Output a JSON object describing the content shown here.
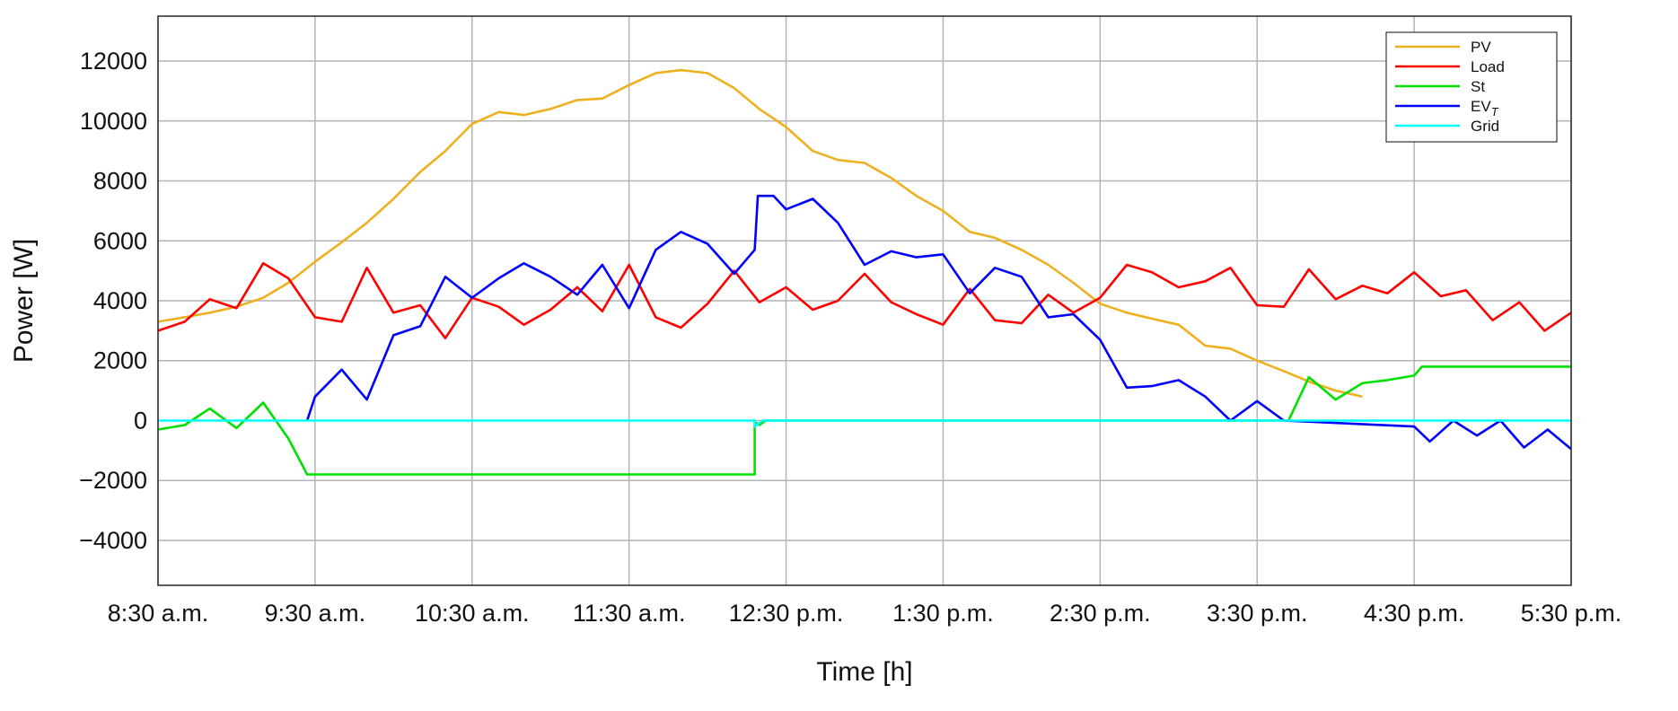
{
  "chart_data": {
    "type": "line",
    "title": "",
    "xlabel": "Time [h]",
    "ylabel": "Power [W]",
    "grid": true,
    "legend_position": "top-right",
    "xlim": [
      8.5,
      17.5
    ],
    "ylim": [
      -5500,
      13500
    ],
    "x_ticks": [
      {
        "value": 8.5,
        "label": "8:30 a.m."
      },
      {
        "value": 9.5,
        "label": "9:30 a.m."
      },
      {
        "value": 10.5,
        "label": "10:30 a.m."
      },
      {
        "value": 11.5,
        "label": "11:30 a.m."
      },
      {
        "value": 12.5,
        "label": "12:30 p.m."
      },
      {
        "value": 13.5,
        "label": "1:30 p.m."
      },
      {
        "value": 14.5,
        "label": "2:30 p.m."
      },
      {
        "value": 15.5,
        "label": "3:30 p.m."
      },
      {
        "value": 16.5,
        "label": "4:30 p.m."
      },
      {
        "value": 17.5,
        "label": "5:30 p.m."
      }
    ],
    "y_ticks": [
      {
        "value": 12000,
        "label": "12000"
      },
      {
        "value": 10000,
        "label": "10000"
      },
      {
        "value": 8000,
        "label": "8000"
      },
      {
        "value": 6000,
        "label": "6000"
      },
      {
        "value": 4000,
        "label": "4000"
      },
      {
        "value": 2000,
        "label": "2000"
      },
      {
        "value": 0,
        "label": "0"
      },
      {
        "value": -2000,
        "label": "−2000"
      },
      {
        "value": -4000,
        "label": "−4000"
      }
    ],
    "series": [
      {
        "name": "PV",
        "color": "#EDB120",
        "points": [
          [
            8.5,
            3300
          ],
          [
            8.67,
            3450
          ],
          [
            8.83,
            3600
          ],
          [
            9.0,
            3800
          ],
          [
            9.17,
            4100
          ],
          [
            9.33,
            4600
          ],
          [
            9.5,
            5300
          ],
          [
            9.67,
            5950
          ],
          [
            9.83,
            6600
          ],
          [
            10.0,
            7400
          ],
          [
            10.17,
            8300
          ],
          [
            10.33,
            9000
          ],
          [
            10.5,
            9900
          ],
          [
            10.67,
            10300
          ],
          [
            10.83,
            10200
          ],
          [
            11.0,
            10400
          ],
          [
            11.17,
            10700
          ],
          [
            11.33,
            10750
          ],
          [
            11.5,
            11200
          ],
          [
            11.67,
            11600
          ],
          [
            11.83,
            11700
          ],
          [
            12.0,
            11600
          ],
          [
            12.17,
            11100
          ],
          [
            12.33,
            10400
          ],
          [
            12.5,
            9800
          ],
          [
            12.67,
            9000
          ],
          [
            12.83,
            8700
          ],
          [
            13.0,
            8600
          ],
          [
            13.17,
            8100
          ],
          [
            13.33,
            7500
          ],
          [
            13.5,
            7000
          ],
          [
            13.67,
            6300
          ],
          [
            13.83,
            6100
          ],
          [
            14.0,
            5700
          ],
          [
            14.17,
            5200
          ],
          [
            14.33,
            4600
          ],
          [
            14.5,
            3900
          ],
          [
            14.67,
            3600
          ],
          [
            14.83,
            3400
          ],
          [
            15.0,
            3200
          ],
          [
            15.17,
            2500
          ],
          [
            15.33,
            2400
          ],
          [
            15.5,
            2000
          ],
          [
            15.67,
            1650
          ],
          [
            15.83,
            1300
          ],
          [
            16.0,
            1000
          ],
          [
            16.17,
            800
          ]
        ]
      },
      {
        "name": "Load",
        "color": "#FF0000",
        "points": [
          [
            8.5,
            3000
          ],
          [
            8.67,
            3300
          ],
          [
            8.83,
            4050
          ],
          [
            9.0,
            3750
          ],
          [
            9.17,
            5250
          ],
          [
            9.33,
            4750
          ],
          [
            9.5,
            3450
          ],
          [
            9.67,
            3300
          ],
          [
            9.83,
            5100
          ],
          [
            10.0,
            3600
          ],
          [
            10.17,
            3850
          ],
          [
            10.33,
            2750
          ],
          [
            10.5,
            4100
          ],
          [
            10.67,
            3800
          ],
          [
            10.83,
            3200
          ],
          [
            11.0,
            3700
          ],
          [
            11.17,
            4450
          ],
          [
            11.33,
            3650
          ],
          [
            11.5,
            5200
          ],
          [
            11.67,
            3450
          ],
          [
            11.83,
            3100
          ],
          [
            12.0,
            3900
          ],
          [
            12.17,
            5000
          ],
          [
            12.33,
            3950
          ],
          [
            12.5,
            4450
          ],
          [
            12.67,
            3700
          ],
          [
            12.83,
            4000
          ],
          [
            13.0,
            4900
          ],
          [
            13.17,
            3950
          ],
          [
            13.33,
            3550
          ],
          [
            13.5,
            3200
          ],
          [
            13.67,
            4400
          ],
          [
            13.83,
            3350
          ],
          [
            14.0,
            3250
          ],
          [
            14.17,
            4200
          ],
          [
            14.33,
            3600
          ],
          [
            14.5,
            4100
          ],
          [
            14.67,
            5200
          ],
          [
            14.83,
            4950
          ],
          [
            15.0,
            4450
          ],
          [
            15.17,
            4650
          ],
          [
            15.33,
            5100
          ],
          [
            15.5,
            3850
          ],
          [
            15.67,
            3800
          ],
          [
            15.83,
            5050
          ],
          [
            16.0,
            4050
          ],
          [
            16.17,
            4500
          ],
          [
            16.33,
            4250
          ],
          [
            16.5,
            4950
          ],
          [
            16.67,
            4150
          ],
          [
            16.83,
            4350
          ],
          [
            17.0,
            3350
          ],
          [
            17.17,
            3950
          ],
          [
            17.33,
            3000
          ],
          [
            17.5,
            3600
          ]
        ]
      },
      {
        "name": "St",
        "color": "#00E000",
        "points": [
          [
            8.5,
            -300
          ],
          [
            8.67,
            -150
          ],
          [
            8.83,
            400
          ],
          [
            9.0,
            -250
          ],
          [
            9.17,
            600
          ],
          [
            9.33,
            -600
          ],
          [
            9.45,
            -1800
          ],
          [
            12.3,
            -1800
          ],
          [
            12.3,
            -50
          ],
          [
            12.33,
            -150
          ],
          [
            12.37,
            0
          ],
          [
            15.7,
            0
          ],
          [
            15.83,
            1450
          ],
          [
            16.0,
            700
          ],
          [
            16.17,
            1250
          ],
          [
            16.33,
            1350
          ],
          [
            16.5,
            1500
          ],
          [
            16.55,
            1800
          ],
          [
            17.5,
            1800
          ]
        ]
      },
      {
        "name": "EV_T",
        "color": "#0000FF",
        "points": [
          [
            9.45,
            0
          ],
          [
            9.5,
            800
          ],
          [
            9.67,
            1700
          ],
          [
            9.83,
            700
          ],
          [
            10.0,
            2850
          ],
          [
            10.17,
            3150
          ],
          [
            10.33,
            4800
          ],
          [
            10.5,
            4100
          ],
          [
            10.67,
            4750
          ],
          [
            10.83,
            5250
          ],
          [
            11.0,
            4800
          ],
          [
            11.17,
            4200
          ],
          [
            11.33,
            5200
          ],
          [
            11.5,
            3750
          ],
          [
            11.67,
            5700
          ],
          [
            11.83,
            6300
          ],
          [
            12.0,
            5900
          ],
          [
            12.17,
            4900
          ],
          [
            12.3,
            5700
          ],
          [
            12.32,
            7500
          ],
          [
            12.42,
            7500
          ],
          [
            12.5,
            7050
          ],
          [
            12.67,
            7400
          ],
          [
            12.83,
            6600
          ],
          [
            13.0,
            5200
          ],
          [
            13.17,
            5650
          ],
          [
            13.33,
            5450
          ],
          [
            13.5,
            5550
          ],
          [
            13.67,
            4250
          ],
          [
            13.83,
            5100
          ],
          [
            14.0,
            4800
          ],
          [
            14.17,
            3450
          ],
          [
            14.33,
            3550
          ],
          [
            14.5,
            2700
          ],
          [
            14.67,
            1100
          ],
          [
            14.83,
            1150
          ],
          [
            15.0,
            1350
          ],
          [
            15.17,
            800
          ],
          [
            15.33,
            0
          ],
          [
            15.5,
            650
          ],
          [
            15.67,
            0
          ],
          [
            16.5,
            -200
          ],
          [
            16.6,
            -700
          ],
          [
            16.75,
            0
          ],
          [
            16.9,
            -500
          ],
          [
            17.05,
            0
          ],
          [
            17.2,
            -900
          ],
          [
            17.35,
            -300
          ],
          [
            17.5,
            -950
          ]
        ]
      },
      {
        "name": "Grid",
        "color": "#00FFFF",
        "points": [
          [
            8.5,
            0
          ],
          [
            12.3,
            0
          ],
          [
            12.3,
            -200
          ],
          [
            12.35,
            0
          ],
          [
            17.5,
            0
          ]
        ]
      }
    ],
    "legend": [
      {
        "label": "PV",
        "color": "#EDB120"
      },
      {
        "label": "Load",
        "color": "#FF0000"
      },
      {
        "label": "St",
        "color": "#00E000"
      },
      {
        "label": "EV",
        "subscript": "T",
        "color": "#0000FF"
      },
      {
        "label": "Grid",
        "color": "#00FFFF"
      }
    ]
  }
}
